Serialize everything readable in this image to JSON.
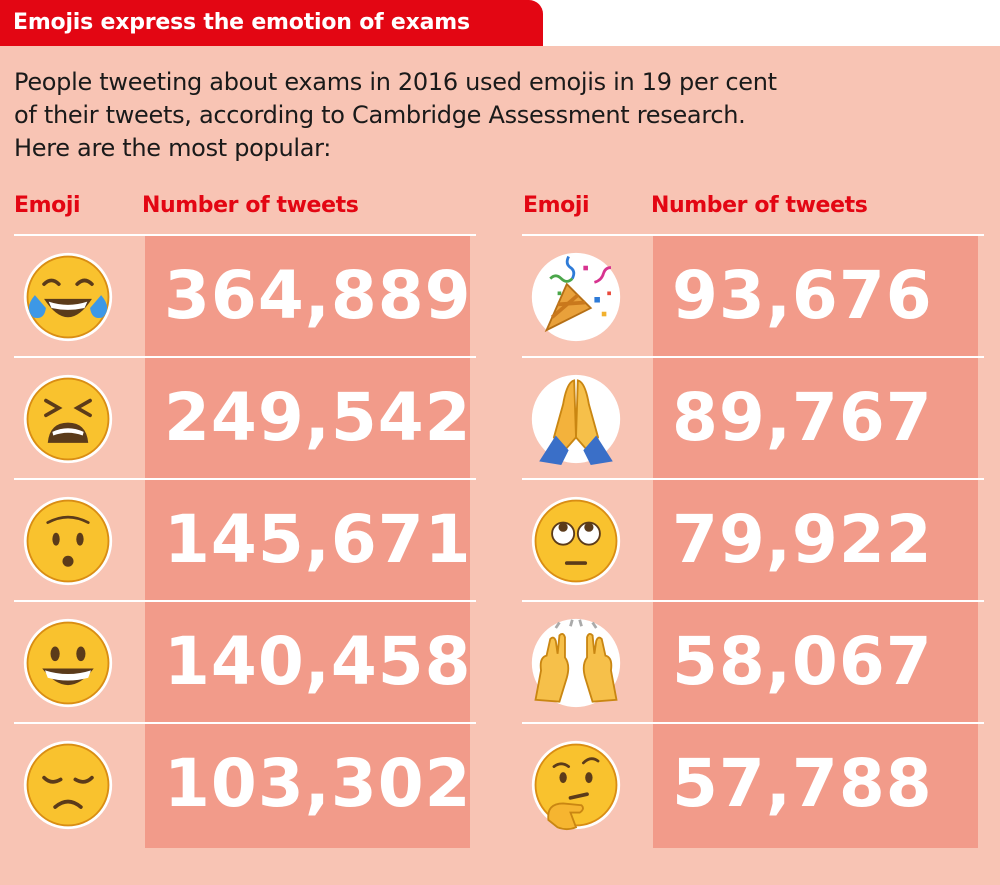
{
  "title": "Emojis express the emotion of exams",
  "intro": [
    "People tweeting about exams in 2016 used emojis in 19 per cent",
    "of their tweets, according to Cambridge Assessment research.",
    "Here are the most popular:"
  ],
  "columns": {
    "emoji": "Emoji",
    "tweets": "Number of tweets"
  },
  "colors": {
    "accent": "#e30613",
    "background": "#f8c4b4",
    "value_bg": "#f29b8a",
    "face": "#f9c22e"
  },
  "chart_data": {
    "type": "table",
    "title": "Emojis express the emotion of exams",
    "columns": [
      "Emoji",
      "Number of tweets"
    ],
    "rows": [
      {
        "emoji": "face-with-tears-of-joy-icon",
        "value": "364,889"
      },
      {
        "emoji": "tired-face-icon",
        "value": "249,542"
      },
      {
        "emoji": "hushed-face-icon",
        "value": "145,671"
      },
      {
        "emoji": "grinning-face-icon",
        "value": "140,458"
      },
      {
        "emoji": "disappointed-face-icon",
        "value": "103,302"
      },
      {
        "emoji": "party-popper-icon",
        "value": "93,676"
      },
      {
        "emoji": "folded-hands-icon",
        "value": "89,767"
      },
      {
        "emoji": "face-with-rolling-eyes-icon",
        "value": "79,922"
      },
      {
        "emoji": "raising-hands-icon",
        "value": "58,067"
      },
      {
        "emoji": "thinking-face-icon",
        "value": "57,788"
      }
    ]
  }
}
